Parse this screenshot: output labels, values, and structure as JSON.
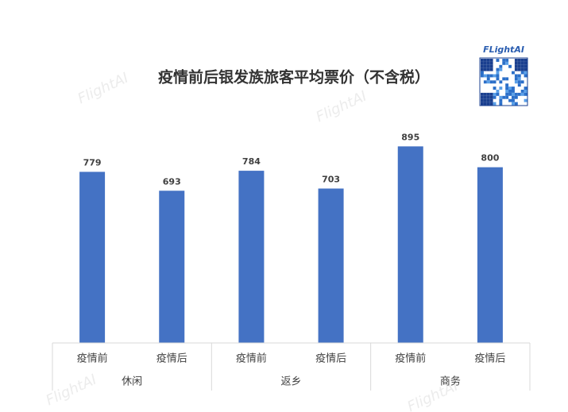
{
  "chart_data": {
    "type": "bar",
    "title": "疫情前后银发族旅客平均票价（不含税）",
    "categories": [
      "疫情前",
      "疫情后",
      "疫情前",
      "疫情后",
      "疫情前",
      "疫情后"
    ],
    "groups": [
      "休闲",
      "返乡",
      "商务"
    ],
    "values": [
      779,
      693,
      784,
      703,
      895,
      800
    ],
    "color": "#4472c4",
    "ylim": [
      0,
      900
    ],
    "logo": "FLightAI",
    "watermark": "FlightAI"
  }
}
